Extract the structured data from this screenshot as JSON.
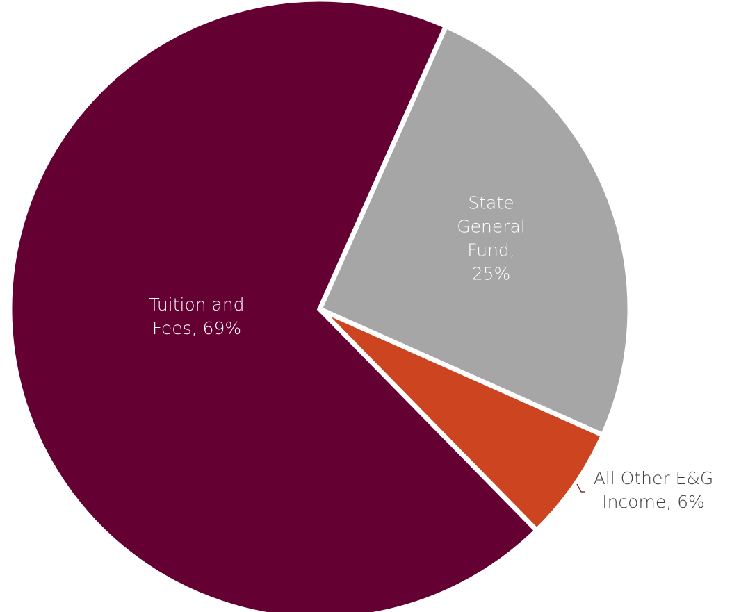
{
  "chart_data": {
    "type": "pie",
    "title": "",
    "slices": [
      {
        "name": "State General Fund",
        "value": 25,
        "label_lines": [
          "State",
          "General",
          "Fund,",
          "25%"
        ],
        "color": "#a6a6a6",
        "label_color": "#ffffff",
        "label_placement": "inside"
      },
      {
        "name": "All Other E&G Income",
        "value": 6,
        "label_lines": [
          "All Other E&G",
          "Income, 6%"
        ],
        "color": "#cc4420",
        "label_color": "#3f3f3f",
        "label_placement": "outside"
      },
      {
        "name": "Tuition and Fees",
        "value": 69,
        "label_lines": [
          "Tuition and",
          "Fees, 69%"
        ],
        "color": "#640032",
        "label_color": "#ffffff",
        "label_placement": "inside"
      }
    ],
    "legend": "none"
  }
}
